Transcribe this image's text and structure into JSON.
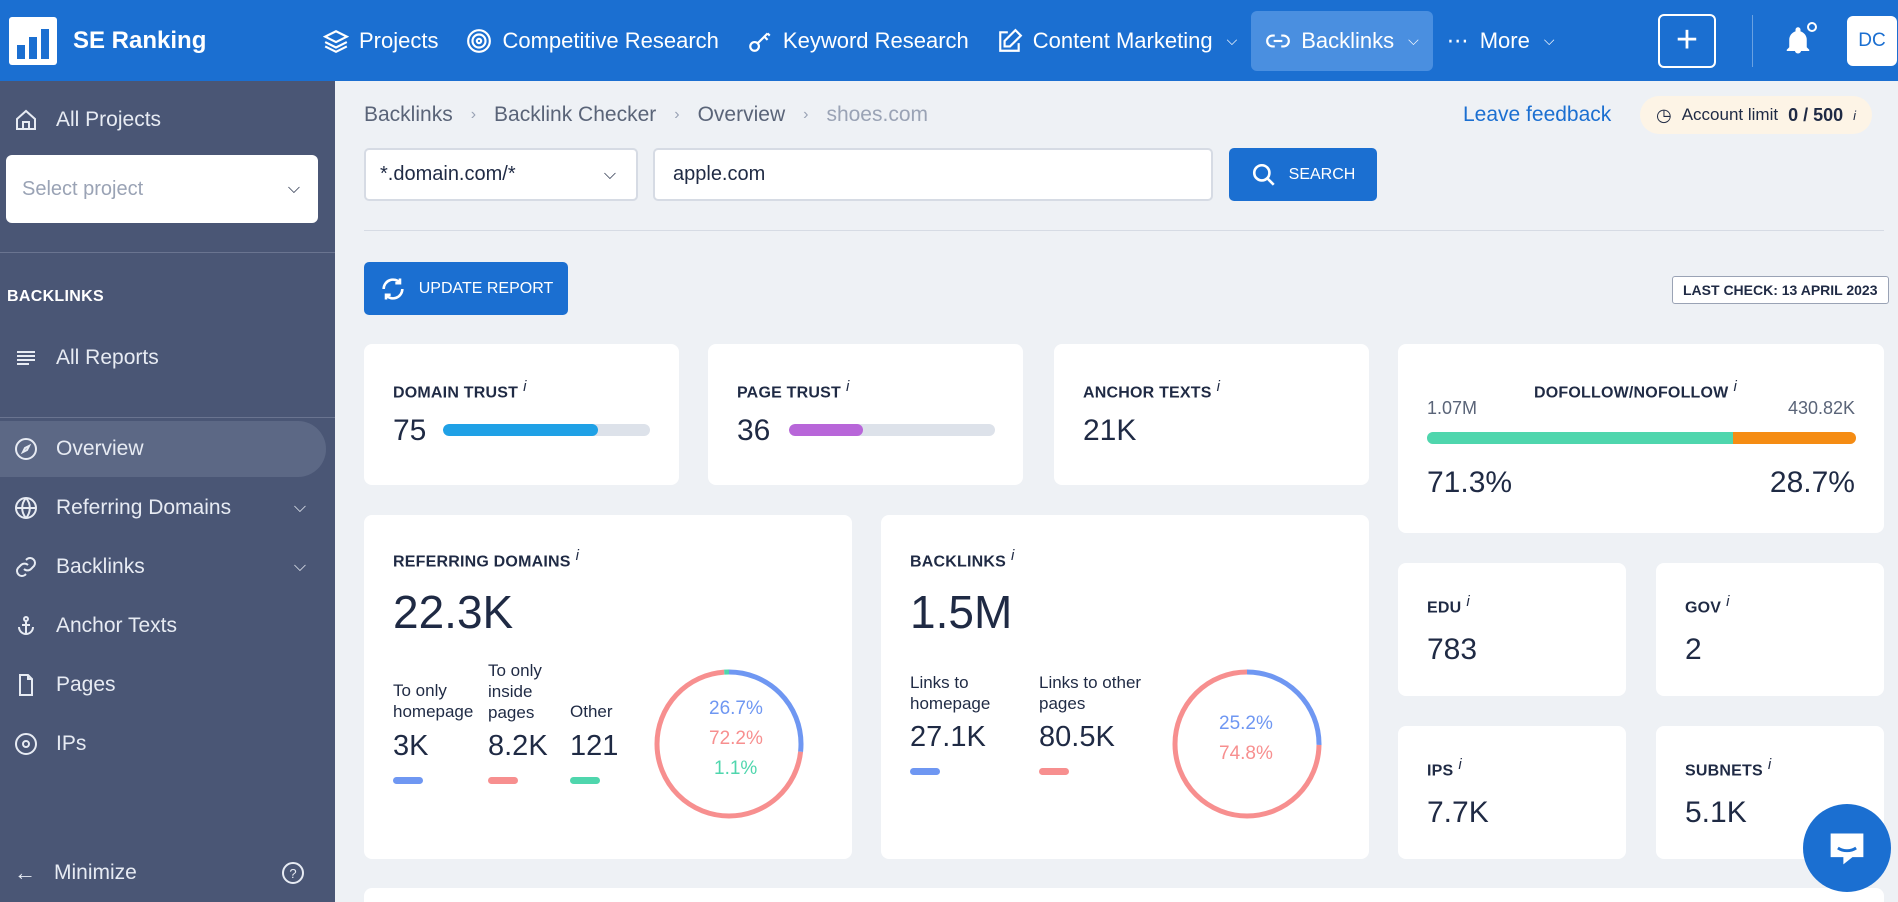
{
  "app": {
    "name": "SE Ranking"
  },
  "nav": {
    "projects": "Projects",
    "competitive": "Competitive Research",
    "keyword": "Keyword Research",
    "content": "Content Marketing",
    "backlinks": "Backlinks",
    "more": "More"
  },
  "user": {
    "initials": "DC"
  },
  "sidebar": {
    "all_projects": "All Projects",
    "select_project_placeholder": "Select project",
    "section": "BACKLINKS",
    "all_reports": "All Reports",
    "items": [
      "Overview",
      "Referring Domains",
      "Backlinks",
      "Anchor Texts",
      "Pages",
      "IPs"
    ],
    "minimize": "Minimize"
  },
  "breadcrumb": [
    "Backlinks",
    "Backlink Checker",
    "Overview",
    "shoes.com"
  ],
  "leave_feedback": "Leave feedback",
  "account_limit": {
    "label": "Account limit",
    "value": "0 / 500",
    "info": "i"
  },
  "search": {
    "mode": "*.domain.com/*",
    "query": "apple.com",
    "button": "SEARCH"
  },
  "update_button": "UPDATE REPORT",
  "last_check": "LAST CHECK: 13 APRIL 2023",
  "cards": {
    "domain_trust": {
      "title": "DOMAIN TRUST",
      "value": "75",
      "fill": 0.75,
      "color": "#1fa1e6"
    },
    "page_trust": {
      "title": "PAGE TRUST",
      "value": "36",
      "fill": 0.36,
      "color": "#b866d9"
    },
    "anchor_texts": {
      "title": "ANCHOR TEXTS",
      "value": "21K"
    },
    "dofollow": {
      "title": "DOFOLLOW/NOFOLLOW",
      "left_count": "1.07M",
      "right_count": "430.82K",
      "left_pct": "71.3%",
      "right_pct": "28.7%",
      "left_fraction": 0.713,
      "left_color": "#4fd6ad",
      "right_color": "#f58c13"
    },
    "referring_domains": {
      "title": "REFERRING DOMAINS",
      "value": "22.3K",
      "labels": [
        "To only homepage",
        "To only inside pages",
        "Other"
      ],
      "values": [
        "3K",
        "8.2K",
        "121"
      ],
      "pcts": [
        "26.7%",
        "72.2%",
        "1.1%"
      ],
      "fractions": [
        0.267,
        0.722,
        0.011
      ],
      "colors": [
        "#6f97f2",
        "#f78f8f",
        "#4fd6ad"
      ]
    },
    "backlinks": {
      "title": "BACKLINKS",
      "value": "1.5M",
      "labels": [
        "Links to homepage",
        "Links to other pages"
      ],
      "values": [
        "27.1K",
        "80.5K"
      ],
      "pcts": [
        "25.2%",
        "74.8%"
      ],
      "fractions": [
        0.252,
        0.748
      ],
      "colors": [
        "#6f97f2",
        "#f78f8f"
      ]
    },
    "edu": {
      "title": "EDU",
      "value": "783"
    },
    "gov": {
      "title": "GOV",
      "value": "2"
    },
    "ips": {
      "title": "IPS",
      "value": "7.7K"
    },
    "subnets": {
      "title": "SUBNETS",
      "value": "5.1K"
    },
    "info_mark": "i"
  }
}
